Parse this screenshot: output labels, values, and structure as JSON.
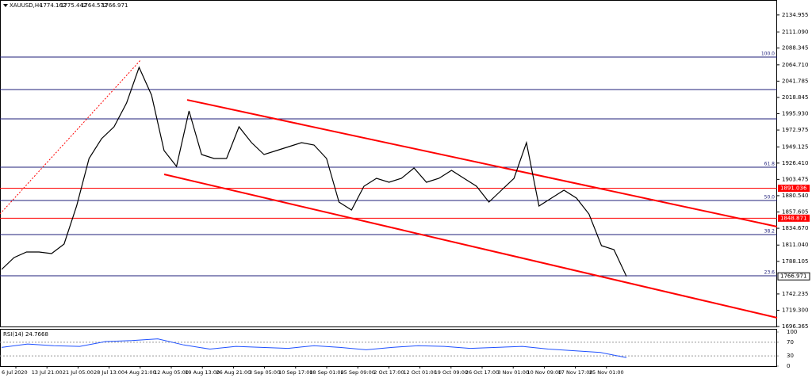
{
  "chart_data": [
    {
      "type": "line",
      "title": "XAUUSD,H4",
      "ohlc": [
        1774.162,
        1775.442,
        1764.572,
        1766.971
      ],
      "x_labels": [
        "6 Jul 2020",
        "13 Jul 21:00",
        "21 Jul 05:00",
        "28 Jul 13:00",
        "4 Aug 21:00",
        "12 Aug 05:00",
        "19 Aug 13:00",
        "26 Aug 21:00",
        "3 Sep 05:00",
        "10 Sep 17:00",
        "18 Sep 01:00",
        "25 Sep 09:00",
        "2 Oct 17:00",
        "12 Oct 01:00",
        "19 Oct 09:00",
        "26 Oct 17:00",
        "3 Nov 01:00",
        "10 Nov 09:00",
        "17 Nov 17:00",
        "25 Nov 01:00"
      ],
      "values": [
        1776.7,
        1793.5,
        1801.3,
        1801.3,
        1799,
        1812.4,
        1866,
        1932.9,
        1960.8,
        1977.5,
        2011,
        2061.2,
        2022.1,
        1944.1,
        1921.7,
        1999.8,
        1938.5,
        1932.9,
        1932.9,
        1977.5,
        1955.2,
        1938.5,
        1944.1,
        1949.6,
        1955.2,
        1951.9,
        1932.9,
        1871.5,
        1860.4,
        1893.9,
        1905,
        1899.4,
        1905,
        1919.5,
        1899.4,
        1905,
        1916.2,
        1905,
        1893.9,
        1871.5,
        1888.3,
        1905,
        1955.2,
        1866,
        1877.1,
        1888.3,
        1877.1,
        1854.8,
        1810.2,
        1804.6,
        1766.971
      ],
      "color": "#000000",
      "ylim": [
        1695.3,
        2156
      ],
      "yticks": [
        2134.955,
        {
          "value": 2111.09,
          "label": "2111.090"
        },
        2088.345,
        {
          "value": 2064.71,
          "label": "2064.710"
        },
        2041.785,
        2018.845,
        {
          "value": 1995.93,
          "label": "1995.930"
        },
        1972.975,
        1949.125,
        {
          "value": 1926.41,
          "label": "1926.410"
        },
        1903.475,
        {
          "value": 1880.54,
          "label": "1880.540"
        },
        1857.605,
        {
          "value": 1834.67,
          "label": "1834.670"
        },
        {
          "value": 1811.04,
          "label": "1811.040"
        },
        1788.105,
        1742.235,
        {
          "value": 1719.3,
          "label": "1719.300"
        },
        1696.365
      ],
      "fib_levels": [
        {
          "price": 2075.7,
          "label": "100.0"
        },
        {
          "price": 2030
        },
        {
          "price": 1988.7
        },
        {
          "price": 1920.6,
          "label": "61.8"
        },
        {
          "price": 1873.8,
          "label": "50.0"
        },
        {
          "price": 1825.8,
          "label": "38.2"
        },
        {
          "price": 1767.8,
          "label": "23.6"
        }
      ],
      "hlines": [
        1891.036,
        1848.871
      ],
      "channel": [
        [
          2015.4,
          1837.0
        ],
        [
          1910.6,
          1708.7
        ]
      ],
      "trend": [
        1854.8,
        2072.3
      ]
    },
    {
      "type": "line",
      "title": "RSI(14) 24.7668",
      "values": [
        55,
        65,
        60,
        58,
        72,
        75,
        80,
        62,
        50,
        58,
        55,
        52,
        60,
        55,
        48,
        55,
        60,
        58,
        52,
        55,
        58,
        50,
        45,
        40,
        25
      ],
      "color": "#1e50ff",
      "ylim": [
        0,
        100
      ],
      "yticks": [
        100,
        70,
        30,
        0
      ]
    }
  ]
}
